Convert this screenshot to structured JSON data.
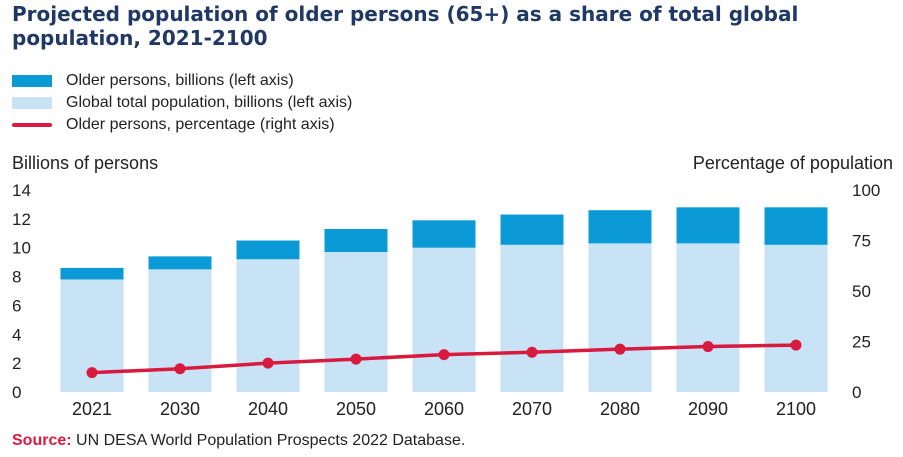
{
  "title": "Projected population of older persons (65+) as a share of total global population, 2021-2100",
  "legend": [
    {
      "label": "Older persons, billions (left axis)",
      "color": "#0b9ad6",
      "kind": "bar"
    },
    {
      "label": "Global total population, billions (left axis)",
      "color": "#c9e3f6",
      "kind": "bar"
    },
    {
      "label": "Older persons, percentage (right axis)",
      "color": "#d81a3f",
      "kind": "line"
    }
  ],
  "source": {
    "label": "Source:",
    "text": "UN DESA World Population Prospects 2022 Database."
  },
  "chart_data": {
    "type": "bar",
    "title": "Projected population of older persons (65+) as a share of total global population, 2021-2100",
    "ylabel": "Billions of persons",
    "y2label": "Percentage of population",
    "ylim": [
      0,
      14
    ],
    "y2lim": [
      0,
      100
    ],
    "yticks": [
      0,
      2,
      4,
      6,
      8,
      10,
      12,
      14
    ],
    "y2ticks": [
      0,
      25,
      50,
      75,
      100
    ],
    "categories": [
      "2021",
      "2030",
      "2040",
      "2050",
      "2060",
      "2070",
      "2080",
      "2090",
      "2100"
    ],
    "series": [
      {
        "name": "Global total population, billions (left axis)",
        "axis": "left",
        "stack": "base",
        "values": [
          7.8,
          8.5,
          9.2,
          9.7,
          10.0,
          10.2,
          10.3,
          10.3,
          10.2
        ]
      },
      {
        "name": "Older persons, billions (left axis)",
        "axis": "left",
        "stack": "top",
        "values": [
          0.8,
          0.9,
          1.3,
          1.6,
          1.9,
          2.1,
          2.3,
          2.5,
          2.6
        ]
      },
      {
        "name": "Older persons, percentage (right axis)",
        "axis": "right",
        "type": "line",
        "values": [
          9.6,
          11.5,
          14.3,
          16.3,
          18.5,
          19.7,
          21.2,
          22.5,
          23.2
        ]
      }
    ],
    "colors": {
      "older": "#0b9ad6",
      "total": "#c9e3f6",
      "line": "#d81a3f",
      "axis_text": "#222222"
    },
    "grid": false
  }
}
